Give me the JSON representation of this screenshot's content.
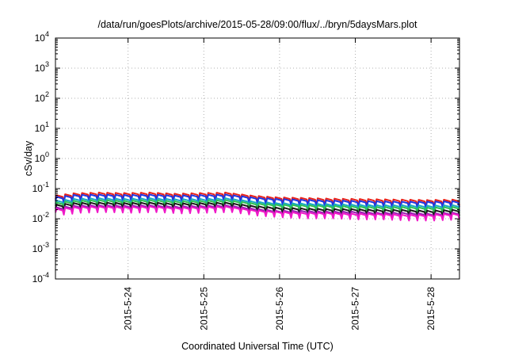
{
  "chart_data": {
    "type": "line",
    "title": "/data/run/goesPlots/archive/2015-05-28/09:00/flux/../bryn/5daysMars.plot",
    "xlabel": "Coordinated Universal Time (UTC)",
    "ylabel": "cSv/day",
    "x_axis": {
      "type": "date",
      "range": [
        "2015-05-23T01:00",
        "2015-05-28T09:00"
      ],
      "ticks": [
        {
          "value": "2015-05-24T00:00",
          "label": "2015-5-24"
        },
        {
          "value": "2015-05-25T00:00",
          "label": "2015-5-25"
        },
        {
          "value": "2015-05-26T00:00",
          "label": "2015-5-26"
        },
        {
          "value": "2015-05-27T00:00",
          "label": "2015-5-27"
        },
        {
          "value": "2015-05-28T00:00",
          "label": "2015-5-28"
        }
      ]
    },
    "y_axis": {
      "scale": "log",
      "range": [
        0.0001,
        10000
      ],
      "ticks": [
        {
          "value": 0.0001,
          "base": "10",
          "exp": "-4"
        },
        {
          "value": 0.001,
          "base": "10",
          "exp": "-3"
        },
        {
          "value": 0.01,
          "base": "10",
          "exp": "-2"
        },
        {
          "value": 0.1,
          "base": "10",
          "exp": "-1"
        },
        {
          "value": 1,
          "base": "10",
          "exp": "0"
        },
        {
          "value": 10,
          "base": "10",
          "exp": "1"
        },
        {
          "value": 100,
          "base": "10",
          "exp": "2"
        },
        {
          "value": 1000,
          "base": "10",
          "exp": "3"
        },
        {
          "value": 10000,
          "base": "10",
          "exp": "4"
        }
      ]
    },
    "grid": true,
    "legend": "none",
    "series": [
      {
        "color": "#e8221b",
        "points": [
          [
            "2015-05-23T01:00",
            0.045
          ],
          [
            "2015-05-23T09:00",
            0.057
          ],
          [
            "2015-05-23T17:00",
            0.06
          ],
          [
            "2015-05-24T01:00",
            0.058
          ],
          [
            "2015-05-24T09:00",
            0.06
          ],
          [
            "2015-05-24T17:00",
            0.055
          ],
          [
            "2015-05-25T01:00",
            0.058
          ],
          [
            "2015-05-25T09:00",
            0.06
          ],
          [
            "2015-05-25T17:00",
            0.048
          ],
          [
            "2015-05-26T01:00",
            0.042
          ],
          [
            "2015-05-26T09:00",
            0.04
          ],
          [
            "2015-05-26T17:00",
            0.038
          ],
          [
            "2015-05-27T01:00",
            0.037
          ],
          [
            "2015-05-27T09:00",
            0.036
          ],
          [
            "2015-05-27T17:00",
            0.035
          ],
          [
            "2015-05-28T01:00",
            0.034
          ],
          [
            "2015-05-28T09:00",
            0.035
          ]
        ]
      },
      {
        "color": "#2035e0",
        "points": [
          [
            "2015-05-23T01:00",
            0.04
          ],
          [
            "2015-05-23T09:00",
            0.05
          ],
          [
            "2015-05-23T17:00",
            0.052
          ],
          [
            "2015-05-24T01:00",
            0.05
          ],
          [
            "2015-05-24T09:00",
            0.052
          ],
          [
            "2015-05-24T17:00",
            0.048
          ],
          [
            "2015-05-25T01:00",
            0.05
          ],
          [
            "2015-05-25T09:00",
            0.052
          ],
          [
            "2015-05-25T17:00",
            0.042
          ],
          [
            "2015-05-26T01:00",
            0.037
          ],
          [
            "2015-05-26T09:00",
            0.035
          ],
          [
            "2015-05-26T17:00",
            0.033
          ],
          [
            "2015-05-27T01:00",
            0.032
          ],
          [
            "2015-05-27T09:00",
            0.031
          ],
          [
            "2015-05-27T17:00",
            0.03
          ],
          [
            "2015-05-28T01:00",
            0.03
          ],
          [
            "2015-05-28T09:00",
            0.031
          ]
        ]
      },
      {
        "color": "#17a9c2",
        "points": [
          [
            "2015-05-23T01:00",
            0.03
          ],
          [
            "2015-05-23T09:00",
            0.037
          ],
          [
            "2015-05-23T17:00",
            0.039
          ],
          [
            "2015-05-24T01:00",
            0.037
          ],
          [
            "2015-05-24T09:00",
            0.039
          ],
          [
            "2015-05-24T17:00",
            0.036
          ],
          [
            "2015-05-25T01:00",
            0.037
          ],
          [
            "2015-05-25T09:00",
            0.039
          ],
          [
            "2015-05-25T17:00",
            0.031
          ],
          [
            "2015-05-26T01:00",
            0.027
          ],
          [
            "2015-05-26T09:00",
            0.026
          ],
          [
            "2015-05-26T17:00",
            0.025
          ],
          [
            "2015-05-27T01:00",
            0.024
          ],
          [
            "2015-05-27T09:00",
            0.023
          ],
          [
            "2015-05-27T17:00",
            0.023
          ],
          [
            "2015-05-28T01:00",
            0.022
          ],
          [
            "2015-05-28T09:00",
            0.023
          ]
        ]
      },
      {
        "color": "#2ebf52",
        "points": [
          [
            "2015-05-23T01:00",
            0.026
          ],
          [
            "2015-05-23T09:00",
            0.032
          ],
          [
            "2015-05-23T17:00",
            0.034
          ],
          [
            "2015-05-24T01:00",
            0.032
          ],
          [
            "2015-05-24T09:00",
            0.034
          ],
          [
            "2015-05-24T17:00",
            0.031
          ],
          [
            "2015-05-25T01:00",
            0.032
          ],
          [
            "2015-05-25T09:00",
            0.034
          ],
          [
            "2015-05-25T17:00",
            0.027
          ],
          [
            "2015-05-26T01:00",
            0.024
          ],
          [
            "2015-05-26T09:00",
            0.023
          ],
          [
            "2015-05-26T17:00",
            0.022
          ],
          [
            "2015-05-27T01:00",
            0.021
          ],
          [
            "2015-05-27T09:00",
            0.02
          ],
          [
            "2015-05-27T17:00",
            0.02
          ],
          [
            "2015-05-28T01:00",
            0.019
          ],
          [
            "2015-05-28T09:00",
            0.02
          ]
        ]
      },
      {
        "color": "#1a1a1a",
        "points": [
          [
            "2015-05-23T01:00",
            0.022
          ],
          [
            "2015-05-23T09:00",
            0.027
          ],
          [
            "2015-05-23T17:00",
            0.028
          ],
          [
            "2015-05-24T01:00",
            0.027
          ],
          [
            "2015-05-24T09:00",
            0.028
          ],
          [
            "2015-05-24T17:00",
            0.026
          ],
          [
            "2015-05-25T01:00",
            0.027
          ],
          [
            "2015-05-25T09:00",
            0.028
          ],
          [
            "2015-05-25T17:00",
            0.022
          ],
          [
            "2015-05-26T01:00",
            0.019
          ],
          [
            "2015-05-26T09:00",
            0.018
          ],
          [
            "2015-05-26T17:00",
            0.017
          ],
          [
            "2015-05-27T01:00",
            0.017
          ],
          [
            "2015-05-27T09:00",
            0.016
          ],
          [
            "2015-05-27T17:00",
            0.016
          ],
          [
            "2015-05-28T01:00",
            0.015
          ],
          [
            "2015-05-28T09:00",
            0.016
          ]
        ]
      },
      {
        "color": "#9a1fb2",
        "points": [
          [
            "2015-05-23T01:00",
            0.018
          ],
          [
            "2015-05-23T09:00",
            0.022
          ],
          [
            "2015-05-23T17:00",
            0.023
          ],
          [
            "2015-05-24T01:00",
            0.022
          ],
          [
            "2015-05-24T09:00",
            0.023
          ],
          [
            "2015-05-24T17:00",
            0.021
          ],
          [
            "2015-05-25T01:00",
            0.022
          ],
          [
            "2015-05-25T09:00",
            0.023
          ],
          [
            "2015-05-25T17:00",
            0.018
          ],
          [
            "2015-05-26T01:00",
            0.015
          ],
          [
            "2015-05-26T09:00",
            0.015
          ],
          [
            "2015-05-26T17:00",
            0.014
          ],
          [
            "2015-05-27T01:00",
            0.014
          ],
          [
            "2015-05-27T09:00",
            0.013
          ],
          [
            "2015-05-27T17:00",
            0.013
          ],
          [
            "2015-05-28T01:00",
            0.012
          ],
          [
            "2015-05-28T09:00",
            0.013
          ]
        ]
      },
      {
        "color": "#f018c8",
        "points": [
          [
            "2015-05-23T01:00",
            0.016
          ],
          [
            "2015-05-23T09:00",
            0.02
          ],
          [
            "2015-05-23T17:00",
            0.021
          ],
          [
            "2015-05-24T01:00",
            0.02
          ],
          [
            "2015-05-24T09:00",
            0.021
          ],
          [
            "2015-05-24T17:00",
            0.019
          ],
          [
            "2015-05-25T01:00",
            0.02
          ],
          [
            "2015-05-25T09:00",
            0.021
          ],
          [
            "2015-05-25T17:00",
            0.016
          ],
          [
            "2015-05-26T01:00",
            0.014
          ],
          [
            "2015-05-26T09:00",
            0.013
          ],
          [
            "2015-05-26T17:00",
            0.013
          ],
          [
            "2015-05-27T01:00",
            0.012
          ],
          [
            "2015-05-27T09:00",
            0.012
          ],
          [
            "2015-05-27T17:00",
            0.011
          ],
          [
            "2015-05-28T01:00",
            0.011
          ],
          [
            "2015-05-28T09:00",
            0.012
          ]
        ]
      }
    ]
  }
}
